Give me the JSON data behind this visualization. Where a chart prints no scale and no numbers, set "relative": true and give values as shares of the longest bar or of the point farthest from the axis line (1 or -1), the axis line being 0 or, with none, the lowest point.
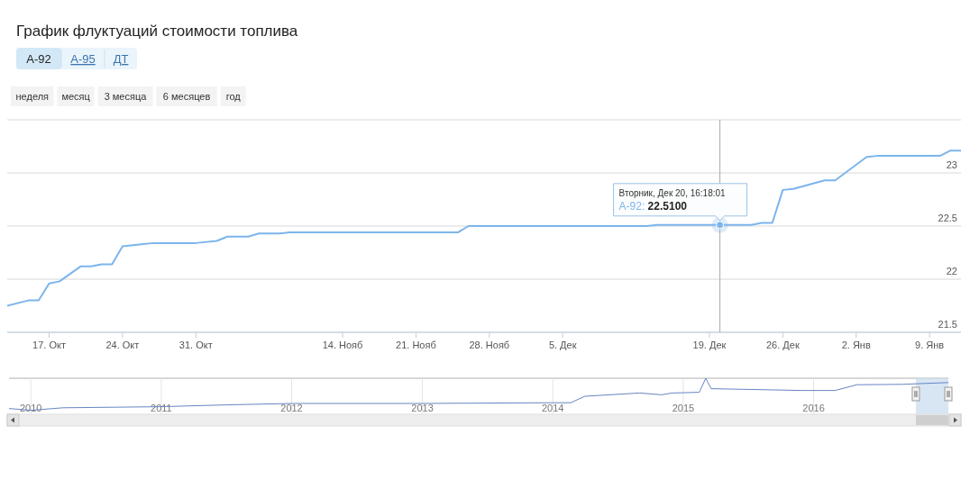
{
  "chart_data": [
    {
      "type": "line",
      "title": "График флуктуаций стоимости топлива",
      "annotations": [
        "А-92",
        "А-95",
        "ДТ",
        "неделя",
        "месяц",
        "3 месяца",
        "6 месяцев",
        "год",
        {
          "text": "Вторник, Дек 20, 16:18:01",
          "x": "2016-12-20",
          "y": 22.51
        },
        "А-92: 22.5100"
      ],
      "x": [
        "2016-10-13",
        "2016-10-15",
        "2016-10-16",
        "2016-10-17",
        "2016-10-18",
        "2016-10-20",
        "2016-10-21",
        "2016-10-22",
        "2016-10-23",
        "2016-10-24",
        "2016-10-26",
        "2016-10-27",
        "2016-10-31",
        "2016-11-02",
        "2016-11-03",
        "2016-11-05",
        "2016-11-06",
        "2016-11-08",
        "2016-11-09",
        "2016-11-25",
        "2016-11-26",
        "2016-12-13",
        "2016-12-14",
        "2016-12-20",
        "2016-12-23",
        "2016-12-24",
        "2016-12-25",
        "2016-12-26",
        "2016-12-27",
        "2016-12-30",
        "2016-12-31",
        "2017-01-03",
        "2017-01-04",
        "2017-01-10",
        "2017-01-11",
        "2017-01-12"
      ],
      "series": [
        {
          "color": "#7cb5ec",
          "values": [
            21.75,
            21.8,
            21.8,
            21.96,
            21.98,
            22.12,
            22.12,
            22.14,
            22.14,
            22.31,
            22.33,
            22.34,
            22.34,
            22.36,
            22.4,
            22.4,
            22.43,
            22.43,
            22.44,
            22.44,
            22.5,
            22.5,
            22.51,
            22.51,
            22.51,
            22.53,
            22.53,
            22.84,
            22.85,
            22.93,
            22.93,
            23.15,
            23.16,
            23.16,
            23.21,
            23.21
          ]
        }
      ],
      "xlim": [
        "2016-10-13",
        "2017-01-12"
      ],
      "ylim": [
        21.5,
        23.5
      ],
      "xticks": [
        {
          "value": "2016-10-17",
          "label": "17. Окт"
        },
        {
          "value": "2016-10-24",
          "label": "24. Окт"
        },
        {
          "value": "2016-10-31",
          "label": "31. Окт"
        },
        {
          "value": "2016-11-14",
          "label": "14. Нояб"
        },
        {
          "value": "2016-11-21",
          "label": "21. Нояб"
        },
        {
          "value": "2016-11-28",
          "label": "28. Нояб"
        },
        {
          "value": "2016-12-05",
          "label": "5. Дек"
        },
        {
          "value": "2016-12-19",
          "label": "19. Дек"
        },
        {
          "value": "2016-12-26",
          "label": "26. Дек"
        },
        {
          "value": "2017-01-02",
          "label": "2. Янв"
        },
        {
          "value": "2017-01-09",
          "label": "9. Янв"
        }
      ],
      "yticks": [
        21.5,
        22,
        22.5,
        23,
        {
          "value": 23.5,
          "label": null
        }
      ],
      "grid": "y",
      "ref_lines": [
        {
          "axis": "x",
          "value": "2016-12-20",
          "color": "#aaaaaa"
        }
      ]
    },
    {
      "type": "line",
      "relative": true,
      "x": [
        "2009-11-01",
        "2010-01-01",
        "2010-04-01",
        "2011-01-01",
        "2011-07-01",
        "2012-01-01",
        "2013-01-01",
        "2014-01-01",
        "2014-02-20",
        "2014-04-01",
        "2014-09-01",
        "2014-11-01",
        "2014-12-01",
        "2015-02-15",
        "2015-03-05",
        "2015-03-20",
        "2015-12-01",
        "2016-03-01",
        "2016-05-01",
        "2016-09-01",
        "2017-01-12"
      ],
      "series": [
        {
          "color": "#6685c2",
          "values": [
            0.16,
            0.11,
            0.18,
            0.21,
            0.26,
            0.3,
            0.3,
            0.32,
            0.32,
            0.5,
            0.59,
            0.54,
            0.59,
            0.61,
            1,
            0.71,
            0.66,
            0.66,
            0.82,
            0.83,
            0.88
          ]
        }
      ],
      "xlim": [
        "2009-11-01",
        "2017-01-12"
      ],
      "xticks": [
        {
          "value": "2010-01-01",
          "label": "2010"
        },
        {
          "value": "2011-01-01",
          "label": "2011"
        },
        {
          "value": "2012-01-01",
          "label": "2012"
        },
        {
          "value": "2013-01-01",
          "label": "2013"
        },
        {
          "value": "2014-01-01",
          "label": "2014"
        },
        {
          "value": "2015-01-01",
          "label": "2015"
        },
        {
          "value": "2016-01-01",
          "label": "2016"
        }
      ],
      "bands": [
        {
          "axis": "x",
          "from": "2016-10-13",
          "to": "2017-01-12",
          "color": "#c8dcf0"
        }
      ],
      "grid": "x"
    }
  ]
}
